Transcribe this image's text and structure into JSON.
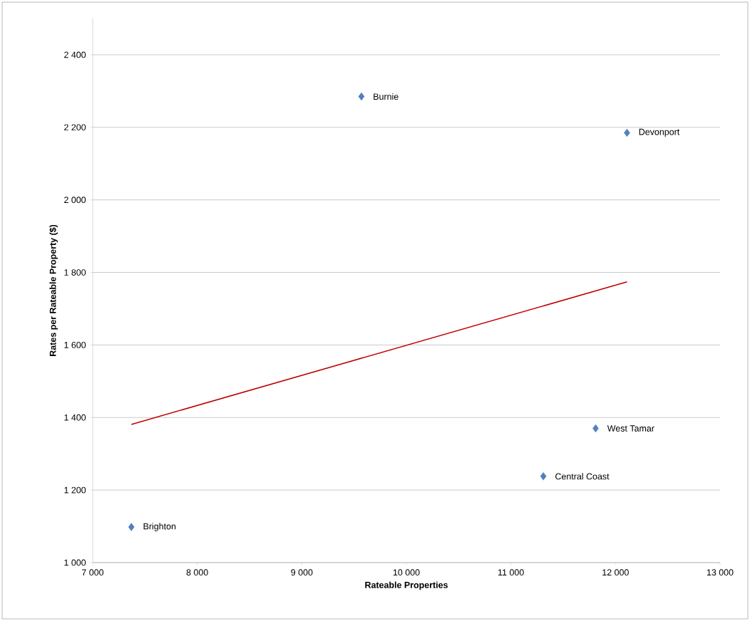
{
  "chart_data": {
    "type": "scatter",
    "xlabel": "Rateable Properties",
    "ylabel": "Rates per Rateable Property ($)",
    "xlim": [
      7000,
      13000
    ],
    "ylim": [
      1000,
      2500
    ],
    "xticks": [
      {
        "value": 7000,
        "label": "7 000"
      },
      {
        "value": 8000,
        "label": "8 000"
      },
      {
        "value": 9000,
        "label": "9 000"
      },
      {
        "value": 10000,
        "label": "10 000"
      },
      {
        "value": 11000,
        "label": "11 000"
      },
      {
        "value": 12000,
        "label": "12 000"
      },
      {
        "value": 13000,
        "label": "13 000"
      }
    ],
    "yticks": [
      {
        "value": 1000,
        "label": "1 000"
      },
      {
        "value": 1200,
        "label": "1 200"
      },
      {
        "value": 1400,
        "label": "1 400"
      },
      {
        "value": 1600,
        "label": "1 600"
      },
      {
        "value": 1800,
        "label": "1 800"
      },
      {
        "value": 2000,
        "label": "2 000"
      },
      {
        "value": 2200,
        "label": "2 200"
      },
      {
        "value": 2400,
        "label": "2 400"
      }
    ],
    "grid": "y",
    "series": [
      {
        "color": "#4f81bd",
        "marker": "diamond",
        "x": [
          9570,
          12110,
          11810,
          11310,
          7370
        ],
        "values": [
          2285,
          2185,
          1370,
          1238,
          1098
        ]
      },
      {
        "type": "line",
        "color": "#c00000",
        "marker": "none",
        "x": [
          7370,
          12110
        ],
        "values": [
          1381,
          1774
        ]
      }
    ],
    "annotations": [
      {
        "text": "Burnie",
        "x": 9570,
        "y": 2285
      },
      {
        "text": "Devonport",
        "x": 12110,
        "y": 2185
      },
      {
        "text": "West Tamar",
        "x": 11810,
        "y": 1370
      },
      {
        "text": "Central Coast",
        "x": 11310,
        "y": 1238
      },
      {
        "text": "Brighton",
        "x": 7370,
        "y": 1098
      }
    ]
  }
}
